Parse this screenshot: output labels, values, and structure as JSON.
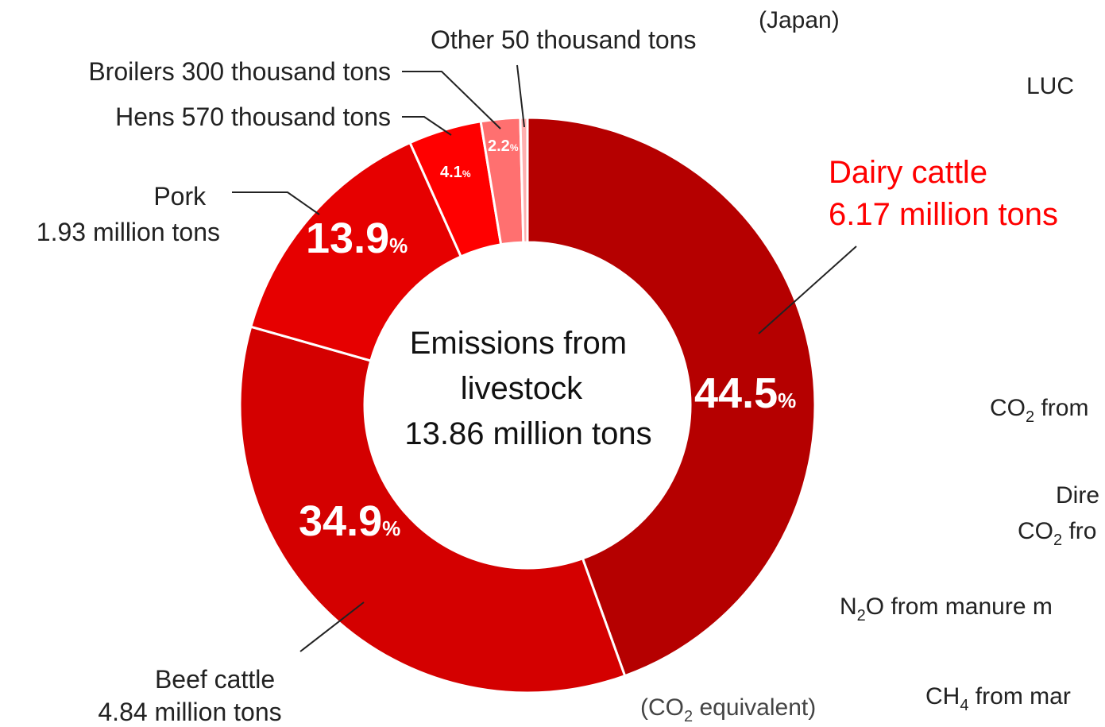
{
  "chart_data": {
    "type": "pie",
    "region_label": "(Japan)",
    "unit_note_prefix": "(CO",
    "unit_note_sub": "2",
    "unit_note_suffix": " equivalent)",
    "center_label": [
      "Emissions from",
      "livestock",
      "13.86 million tons"
    ],
    "categories": [
      "Dairy cattle",
      "Beef cattle",
      "Pork",
      "Hens",
      "Broilers",
      "Other"
    ],
    "values": [
      44.5,
      34.9,
      13.9,
      4.1,
      2.2,
      0.4
    ],
    "slice_colors": [
      "#b50000",
      "#d40000",
      "#e60000",
      "#ff0000",
      "#ff7070",
      "#ffb0b0"
    ],
    "percent_labels": [
      "44.5",
      "34.9",
      "13.9",
      "4.1",
      "2.2",
      ""
    ],
    "percent_sign": "%",
    "slice_labels": {
      "dairy": [
        "Dairy cattle",
        "6.17 million tons"
      ],
      "beef": [
        "Beef cattle",
        "4.84 million tons"
      ],
      "pork": [
        "Pork",
        "1.93 million tons"
      ],
      "hens": "Hens 570 thousand tons",
      "broilers": "Broilers 300 thousand tons",
      "other": "Other 50 thousand tons"
    },
    "highlight_color": "#ff0000"
  },
  "right_panel_fragments": [
    {
      "text": "LUC",
      "sub": "",
      "after": ""
    },
    {
      "text": "CO",
      "sub": "2",
      "after": " from"
    },
    {
      "text": "Dire",
      "sub": "",
      "after": ""
    },
    {
      "text": "CO",
      "sub": "2",
      "after": " fro"
    },
    {
      "text": "N",
      "sub": "2",
      "after": "O from manure m"
    },
    {
      "text": "CH",
      "sub": "4",
      "after": " from mar"
    }
  ]
}
